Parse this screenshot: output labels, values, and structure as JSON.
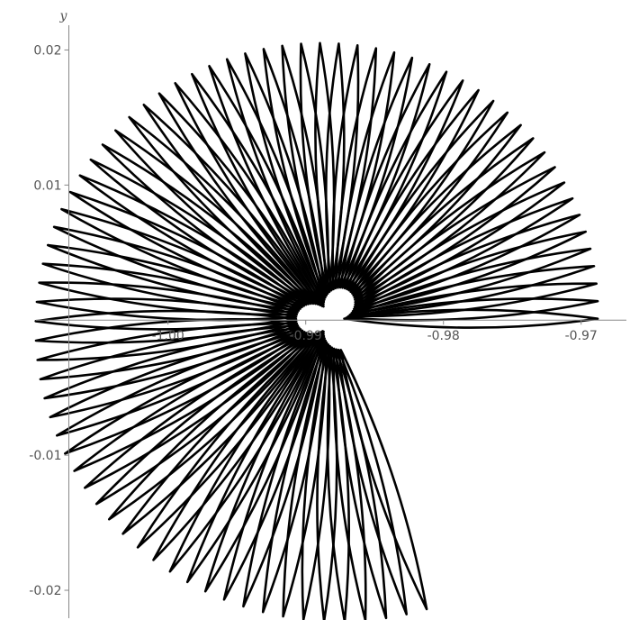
{
  "chart_data": {
    "type": "line",
    "title": "",
    "xlabel": "",
    "ylabel": "y",
    "xlim": [
      -1.0122,
      -0.9658
    ],
    "ylim": [
      -0.0222,
      0.0237
    ],
    "x_ticks": [
      {
        "value": -1.0,
        "label": "-1.00"
      },
      {
        "value": -0.99,
        "label": "-0.99"
      },
      {
        "value": -0.98,
        "label": "-0.98"
      },
      {
        "value": -0.97,
        "label": "-0.97"
      }
    ],
    "y_ticks": [
      {
        "value": 0.02,
        "label": "0.02"
      },
      {
        "value": 0.01,
        "label": "0.01"
      },
      {
        "value": -0.01,
        "label": "-0.01"
      },
      {
        "value": -0.02,
        "label": "-0.02"
      }
    ],
    "axes_origin": {
      "x": -1.0072,
      "y": 0
    },
    "curve": {
      "description": "spiral family of thin elongated loops radiating from a center point",
      "center": {
        "x": -0.9882,
        "y": 0.0001
      },
      "loops": 76,
      "angle_start_deg": 0,
      "angle_end_deg": 288,
      "tip_radius_start": 0.0194,
      "tip_radius_end": 0.0226,
      "base_offset": 0.0025
    },
    "colors": {
      "curve": "#000000",
      "axis": "#888888",
      "tick_label": "#555555"
    },
    "grid": false,
    "legend": "none"
  }
}
